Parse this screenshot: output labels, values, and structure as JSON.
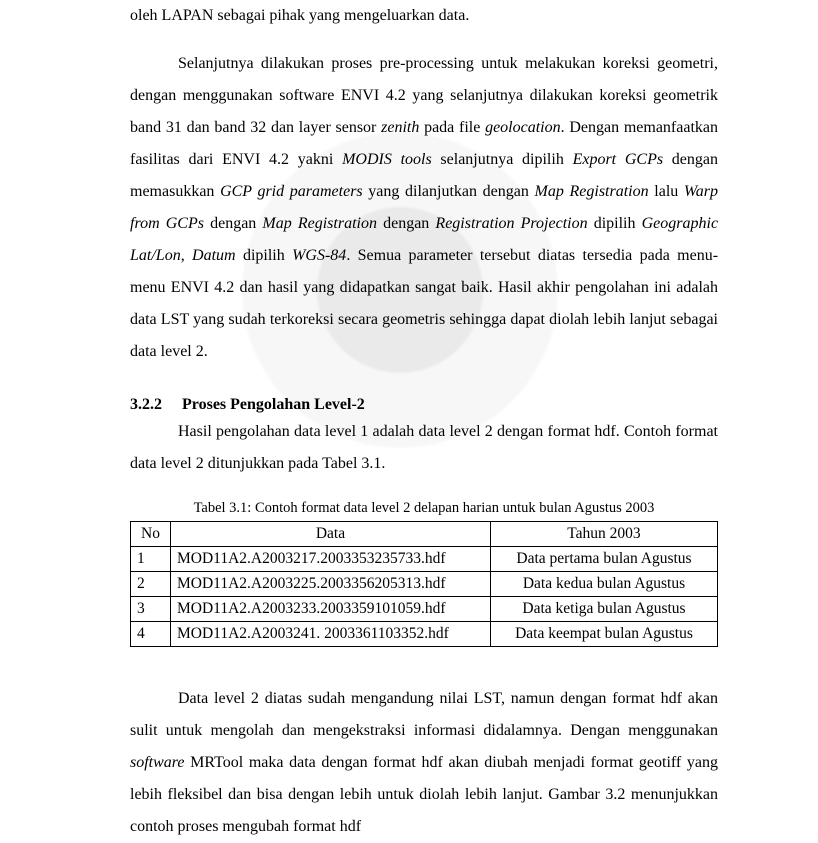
{
  "para_top": "oleh LAPAN sebagai pihak yang mengeluarkan data.",
  "para1_a": "Selanjutnya dilakukan proses pre-processing untuk melakukan koreksi geometri, dengan menggunakan software ENVI 4.2 yang selanjutnya dilakukan koreksi geometrik band 31 dan band 32 dan layer sensor ",
  "para1_zenith": "zenith",
  "para1_b": " pada file ",
  "para1_geoloc": "geolocation",
  "para1_c": ". Dengan memanfaatkan fasilitas dari ENVI 4.2 yakni ",
  "para1_modis": "MODIS tools",
  "para1_d": " selanjutnya dipilih ",
  "para1_export": "Export GCPs",
  "para1_e": " dengan memasukkan ",
  "para1_gcpgrid": "GCP grid parameters",
  "para1_f": " yang dilanjutkan dengan ",
  "para1_mapreg": "Map Registration",
  "para1_g": " lalu ",
  "para1_warp": "Warp from GCPs",
  "para1_h": " dengan ",
  "para1_mapreg2": "Map Registration",
  "para1_i": " dengan ",
  "para1_regproj": "Registration Projection",
  "para1_j": " dipilih ",
  "para1_geolat": "Geographic Lat/Lon",
  "para1_k": ", ",
  "para1_datum": "Datum",
  "para1_l": " dipilih ",
  "para1_wgs": "WGS-84",
  "para1_m": ". Semua parameter tersebut diatas tersedia pada menu-menu ENVI 4.2 dan hasil yang didapatkan sangat baik. Hasil akhir pengolahan ini adalah data LST yang sudah terkoreksi secara geometris sehingga dapat diolah lebih lanjut sebagai data level 2.",
  "sect_num": "3.2.2",
  "sect_title": "Proses Pengolahan Level-2",
  "para2": "Hasil pengolahan data level 1 adalah data level 2 dengan format hdf. Contoh format data level 2 ditunjukkan pada Tabel 3.1.",
  "caption": "Tabel 3.1: Contoh format data level 2 delapan harian untuk bulan Agustus 2003",
  "head_no": "No",
  "head_data": "Data",
  "head_year": "Tahun 2003",
  "rows": [
    {
      "no": "1",
      "data": "MOD11A2.A2003217.2003353235733.hdf",
      "year": "Data pertama bulan Agustus"
    },
    {
      "no": "2",
      "data": "MOD11A2.A2003225.2003356205313.hdf",
      "year": "Data kedua bulan Agustus"
    },
    {
      "no": "3",
      "data": "MOD11A2.A2003233.2003359101059.hdf",
      "year": "Data ketiga bulan Agustus"
    },
    {
      "no": "4",
      "data": "MOD11A2.A2003241. 2003361103352.hdf",
      "year": "Data keempat bulan Agustus"
    }
  ],
  "para3_a": "Data level 2 diatas sudah mengandung nilai LST, namun dengan format hdf akan sulit untuk mengolah dan mengekstraksi informasi didalamnya. Dengan menggunakan ",
  "para3_sw": "software",
  "para3_b": " MRTool maka data dengan format hdf akan diubah menjadi format geotiff yang lebih fleksibel dan bisa dengan lebih untuk diolah lebih lanjut. Gambar 3.2 menunjukkan contoh proses mengubah format hdf"
}
